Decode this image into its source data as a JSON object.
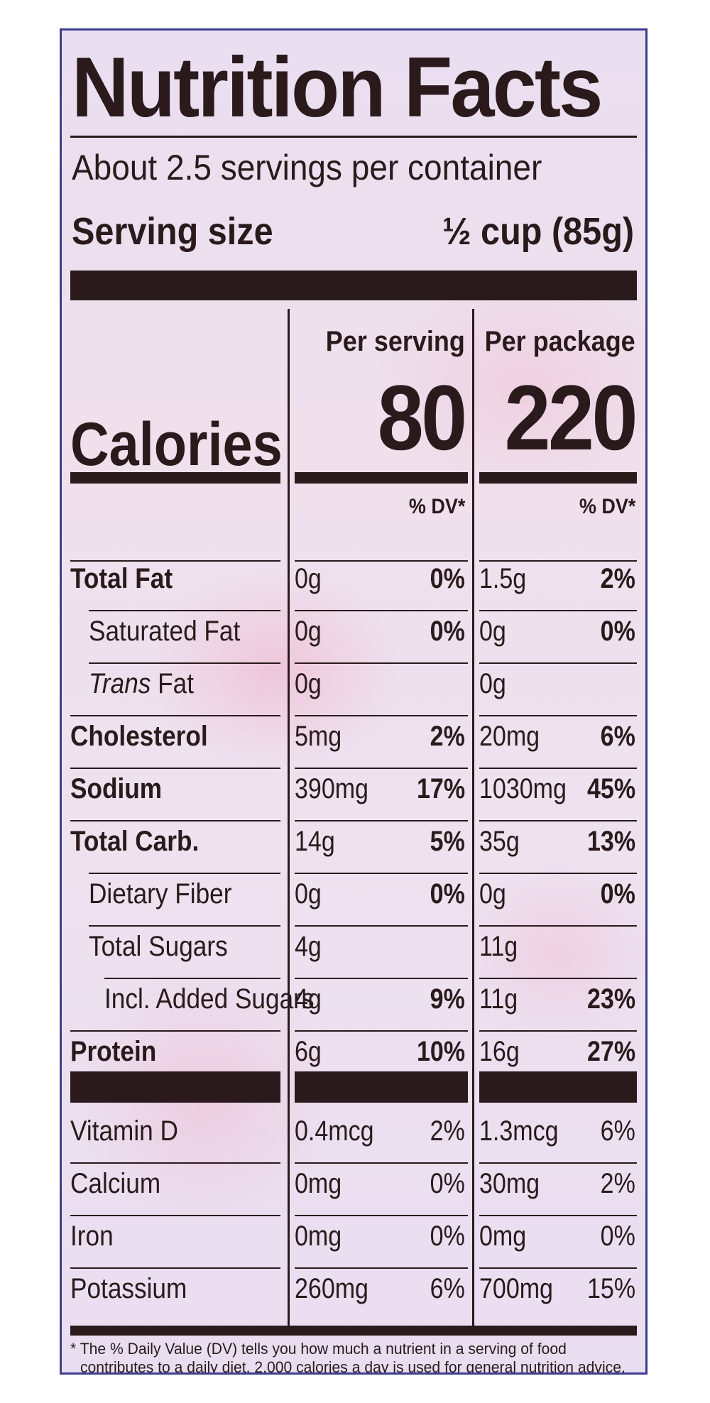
{
  "title": "Nutrition Facts",
  "servings_per_container": "About 2.5 servings per container",
  "serving_size_label": "Serving size",
  "serving_size_value": "½ cup (85g)",
  "columns": {
    "per_serving_label": "Per serving",
    "per_package_label": "Per package",
    "dv_label": "% DV*"
  },
  "calories": {
    "label": "Calories",
    "per_serving": "80",
    "per_package": "220"
  },
  "nutrients": [
    {
      "name": "Total Fat",
      "bold": true,
      "indent": 0,
      "serv_amt": "0g",
      "serv_dv": "0%",
      "pkg_amt": "1.5g",
      "pkg_dv": "2%"
    },
    {
      "name": "Saturated Fat",
      "bold": false,
      "indent": 1,
      "serv_amt": "0g",
      "serv_dv": "0%",
      "pkg_amt": "0g",
      "pkg_dv": "0%"
    },
    {
      "name_italic": "Trans",
      "name": " Fat",
      "bold": false,
      "indent": 1,
      "serv_amt": "0g",
      "serv_dv": "",
      "pkg_amt": "0g",
      "pkg_dv": ""
    },
    {
      "name": "Cholesterol",
      "bold": true,
      "indent": 0,
      "serv_amt": "5mg",
      "serv_dv": "2%",
      "pkg_amt": "20mg",
      "pkg_dv": "6%"
    },
    {
      "name": "Sodium",
      "bold": true,
      "indent": 0,
      "serv_amt": "390mg",
      "serv_dv": "17%",
      "pkg_amt": "1030mg",
      "pkg_dv": "45%"
    },
    {
      "name": "Total Carb.",
      "bold": true,
      "indent": 0,
      "serv_amt": "14g",
      "serv_dv": "5%",
      "pkg_amt": "35g",
      "pkg_dv": "13%"
    },
    {
      "name": "Dietary Fiber",
      "bold": false,
      "indent": 1,
      "serv_amt": "0g",
      "serv_dv": "0%",
      "pkg_amt": "0g",
      "pkg_dv": "0%"
    },
    {
      "name": "Total Sugars",
      "bold": false,
      "indent": 1,
      "serv_amt": "4g",
      "serv_dv": "",
      "pkg_amt": "11g",
      "pkg_dv": ""
    },
    {
      "name": "Incl. Added Sugars",
      "bold": false,
      "indent": 2,
      "serv_amt": "4g",
      "serv_dv": "9%",
      "pkg_amt": "11g",
      "pkg_dv": "23%"
    },
    {
      "name": "Protein",
      "bold": true,
      "indent": 0,
      "serv_amt": "6g",
      "serv_dv": "10%",
      "pkg_amt": "16g",
      "pkg_dv": "27%"
    }
  ],
  "vitamins": [
    {
      "name": "Vitamin D",
      "serv_amt": "0.4mcg",
      "serv_dv": "2%",
      "pkg_amt": "1.3mcg",
      "pkg_dv": "6%"
    },
    {
      "name": "Calcium",
      "serv_amt": "0mg",
      "serv_dv": "0%",
      "pkg_amt": "30mg",
      "pkg_dv": "2%"
    },
    {
      "name": "Iron",
      "serv_amt": "0mg",
      "serv_dv": "0%",
      "pkg_amt": "0mg",
      "pkg_dv": "0%"
    },
    {
      "name": "Potassium",
      "serv_amt": "260mg",
      "serv_dv": "6%",
      "pkg_amt": "700mg",
      "pkg_dv": "15%"
    }
  ],
  "footnote_line1": "* The % Daily Value (DV) tells you how much a nutrient in a serving of food",
  "footnote_line2": "contributes to a daily diet. 2,000 calories a day is used for general nutrition advice.",
  "colors": {
    "ink": "#2a1a1c",
    "border": "#3d3f8c",
    "background": "#eee2ef"
  }
}
